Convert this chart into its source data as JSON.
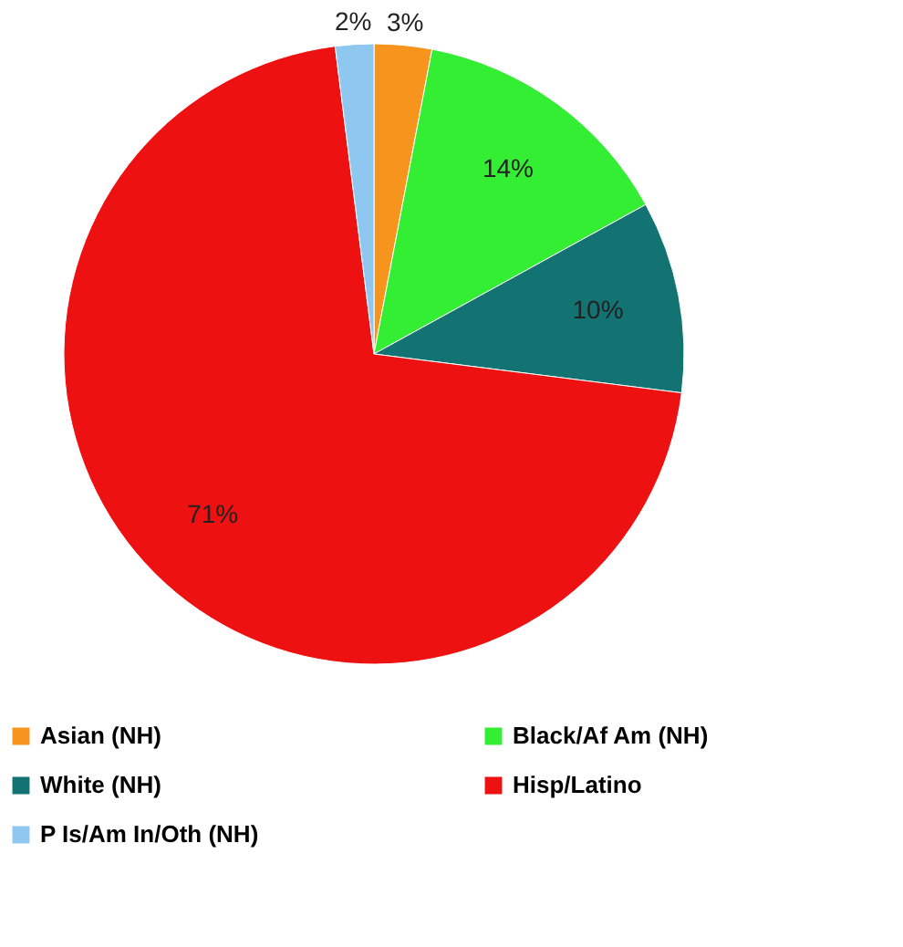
{
  "chart_data": {
    "type": "pie",
    "categories": [
      "Asian (NH)",
      "Black/Af Am (NH)",
      "White (NH)",
      "Hisp/Latino",
      "P Is/Am In/Oth (NH)"
    ],
    "values": [
      3,
      14,
      10,
      71,
      2
    ],
    "colors": [
      "#f7941d",
      "#33ee33",
      "#137272",
      "#ee1111",
      "#8ec8f0"
    ],
    "value_labels": [
      "3%",
      "14%",
      "10%",
      "71%",
      "2%"
    ],
    "legend": "bottom"
  }
}
